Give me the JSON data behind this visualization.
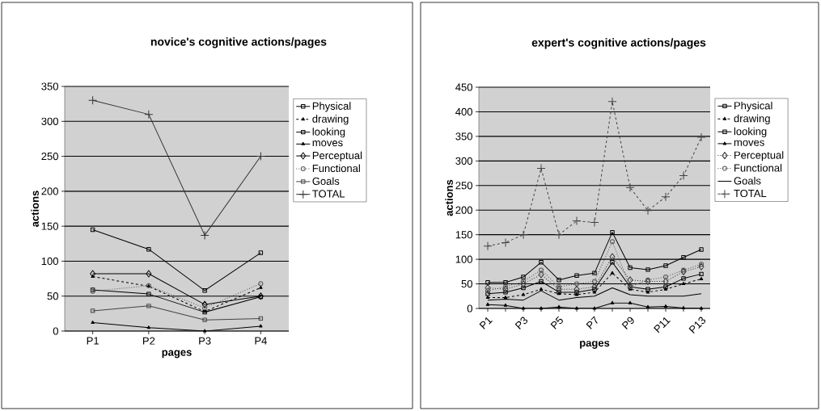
{
  "chart_data": [
    {
      "type": "line",
      "title": "novice's cognitive actions/pages",
      "xlabel": "pages",
      "ylabel": "actions",
      "categories": [
        "P1",
        "P2",
        "P3",
        "P4"
      ],
      "ylim": [
        0,
        350
      ],
      "yticks": [
        0,
        50,
        100,
        150,
        200,
        250,
        300,
        350
      ],
      "grid": "y",
      "legend": "right",
      "series": [
        {
          "name": "Physical",
          "color": "#000000",
          "marker": "square",
          "line_style": "solid",
          "values": [
            145,
            117,
            58,
            112
          ]
        },
        {
          "name": "drawing",
          "color": "#000000",
          "marker": "triangle",
          "line_style": "dashed",
          "values": [
            78,
            64,
            28,
            62
          ]
        },
        {
          "name": "looking",
          "color": "#000000",
          "marker": "square",
          "line_style": "solid",
          "values": [
            59,
            53,
            27,
            49
          ]
        },
        {
          "name": "moves",
          "color": "#000000",
          "marker": "triangle",
          "line_style": "solid",
          "values": [
            12,
            5,
            0,
            7
          ]
        },
        {
          "name": "Perceptual",
          "color": "#000000",
          "marker": "diamond",
          "line_style": "solid",
          "values": [
            82,
            82,
            38,
            50
          ]
        },
        {
          "name": "Functional",
          "color": "#555555",
          "marker": "circle",
          "line_style": "dotted",
          "values": [
            57,
            65,
            33,
            68
          ]
        },
        {
          "name": "Goals",
          "color": "#444444",
          "marker": "square",
          "line_style": "solid",
          "values": [
            29,
            36,
            16,
            18
          ]
        },
        {
          "name": "TOTAL",
          "color": "#333333",
          "marker": "cross",
          "line_style": "solid",
          "values": [
            330,
            310,
            137,
            250
          ]
        }
      ]
    },
    {
      "type": "line",
      "title": "expert's cognitive actions/pages",
      "xlabel": "pages",
      "ylabel": "actions",
      "categories": [
        "P1",
        null,
        "P3",
        null,
        "P5",
        null,
        "P7",
        null,
        "P9",
        null,
        "P11",
        null,
        "P13"
      ],
      "ylim": [
        0,
        450
      ],
      "yticks": [
        0,
        50,
        100,
        150,
        200,
        250,
        300,
        350,
        400,
        450
      ],
      "grid": "y",
      "legend": "right",
      "series": [
        {
          "name": "Physical",
          "color": "#000000",
          "marker": "square",
          "line_style": "solid",
          "values": [
            53,
            53,
            64,
            94,
            58,
            67,
            72,
            155,
            83,
            79,
            87,
            104,
            120
          ]
        },
        {
          "name": "drawing",
          "color": "#000000",
          "marker": "triangle",
          "line_style": "dashed",
          "values": [
            22,
            22,
            28,
            39,
            30,
            28,
            33,
            72,
            39,
            33,
            39,
            50,
            60
          ]
        },
        {
          "name": "looking",
          "color": "#000000",
          "marker": "square",
          "line_style": "solid",
          "values": [
            30,
            33,
            42,
            55,
            33,
            33,
            39,
            94,
            44,
            39,
            44,
            61,
            70
          ]
        },
        {
          "name": "moves",
          "color": "#000000",
          "marker": "triangle",
          "line_style": "solid",
          "values": [
            8,
            6,
            0,
            0,
            3,
            0,
            0,
            11,
            11,
            3,
            4,
            1,
            0
          ]
        },
        {
          "name": "Perceptual",
          "color": "#333333",
          "marker": "diamond",
          "line_style": "dotted",
          "values": [
            42,
            39,
            50,
            69,
            39,
            39,
            44,
            105,
            58,
            55,
            55,
            75,
            85
          ]
        },
        {
          "name": "Functional",
          "color": "#555555",
          "marker": "circle",
          "line_style": "dotted",
          "values": [
            36,
            44,
            55,
            78,
            44,
            50,
            55,
            136,
            44,
            58,
            64,
            78,
            90
          ]
        },
        {
          "name": "Goals",
          "color": "#000000",
          "marker": "none",
          "line_style": "solid",
          "values": [
            17,
            19,
            17,
            36,
            17,
            22,
            25,
            42,
            28,
            25,
            25,
            25,
            30
          ]
        },
        {
          "name": "TOTAL",
          "color": "#444444",
          "marker": "cross",
          "line_style": "dashed",
          "values": [
            127,
            134,
            150,
            285,
            150,
            178,
            175,
            421,
            246,
            199,
            227,
            270,
            348
          ]
        }
      ]
    }
  ]
}
